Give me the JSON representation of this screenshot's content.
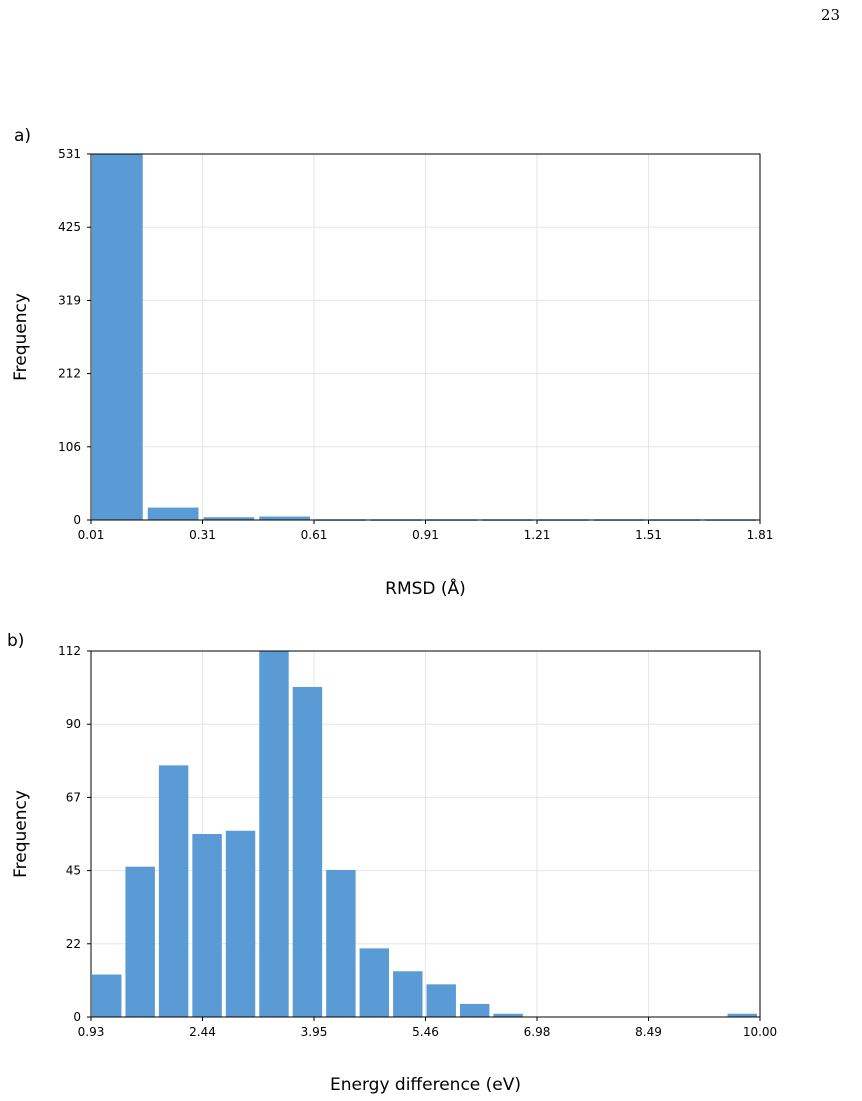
{
  "page_number": "23",
  "colors": {
    "bar": "#5b9bd5",
    "grid": "#e6e6e6",
    "axis": "#000000"
  },
  "chart_data": [
    {
      "panel_label": "a)",
      "type": "bar",
      "xlabel": "RMSD (Å)",
      "ylabel": "Frequency",
      "xlim": [
        0.01,
        1.81
      ],
      "ylim": [
        0,
        531
      ],
      "x_ticks": [
        "0.01",
        "0.31",
        "0.61",
        "0.91",
        "1.21",
        "1.51",
        "1.81"
      ],
      "y_ticks": [
        "0",
        "106",
        "212",
        "319",
        "425",
        "531"
      ],
      "bin_edges": [
        0.01,
        0.16,
        0.31,
        0.46,
        0.61,
        0.76,
        0.91,
        1.06,
        1.21,
        1.36,
        1.51,
        1.66,
        1.81
      ],
      "values": [
        531,
        18,
        4,
        5,
        1,
        1,
        1,
        1,
        1,
        1,
        1,
        1
      ],
      "grid": true
    },
    {
      "panel_label": "b)",
      "type": "bar",
      "xlabel": "Energy difference (eV)",
      "ylabel": "Frequency",
      "xlim": [
        0.93,
        10.0
      ],
      "ylim": [
        0,
        112
      ],
      "x_ticks": [
        "0.93",
        "2.44",
        "3.95",
        "5.46",
        "6.98",
        "8.49",
        "10.00"
      ],
      "y_ticks": [
        "0",
        "22",
        "45",
        "67",
        "90",
        "112"
      ],
      "bin_edges": [
        0.93,
        1.3835,
        1.837,
        2.2905,
        2.744,
        3.1975,
        3.651,
        4.1045,
        4.558,
        5.0115,
        5.465,
        5.9185,
        6.372,
        6.8255,
        7.279,
        7.7325,
        8.186,
        8.6395,
        9.093,
        9.5465,
        10.0
      ],
      "values": [
        13,
        46,
        77,
        56,
        57,
        112,
        101,
        45,
        21,
        14,
        10,
        4,
        1,
        0,
        0,
        0,
        0,
        0,
        0,
        1
      ],
      "grid": true
    }
  ]
}
